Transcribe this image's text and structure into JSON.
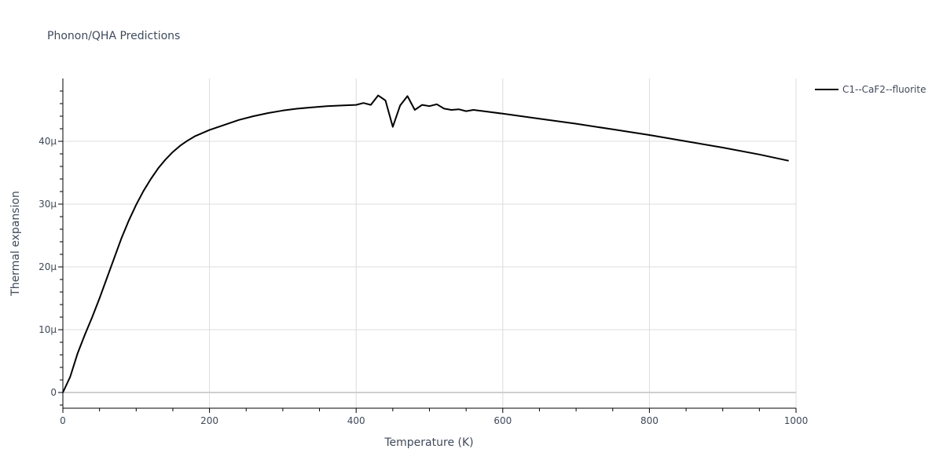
{
  "chart_data": {
    "type": "line",
    "title": "Phonon/QHA Predictions",
    "xlabel": "Temperature (K)",
    "ylabel": "Thermal expansion",
    "xlim": [
      0,
      1000
    ],
    "ylim": [
      -2.5e-06,
      5e-05
    ],
    "x_ticks": [
      {
        "value": 0,
        "label": "0"
      },
      {
        "value": 200,
        "label": "200"
      },
      {
        "value": 400,
        "label": "400"
      },
      {
        "value": 600,
        "label": "600"
      },
      {
        "value": 800,
        "label": "800"
      },
      {
        "value": 1000,
        "label": "1000"
      }
    ],
    "y_ticks": [
      {
        "value": 0,
        "label": "0"
      },
      {
        "value": 1e-05,
        "label": "10µ"
      },
      {
        "value": 2e-05,
        "label": "20µ"
      },
      {
        "value": 3e-05,
        "label": "30µ"
      },
      {
        "value": 4e-05,
        "label": "40µ"
      }
    ],
    "grid": true,
    "legend_position": "top-right",
    "series": [
      {
        "name": "C1--CaF2--fluorite",
        "color": "#000000",
        "x": [
          0,
          10,
          20,
          30,
          40,
          50,
          60,
          70,
          80,
          90,
          100,
          110,
          120,
          130,
          140,
          150,
          160,
          170,
          180,
          190,
          200,
          220,
          240,
          260,
          280,
          300,
          320,
          340,
          360,
          380,
          400,
          410,
          420,
          430,
          440,
          450,
          460,
          470,
          480,
          490,
          500,
          510,
          520,
          530,
          540,
          550,
          560,
          580,
          600,
          650,
          700,
          750,
          800,
          850,
          900,
          950,
          990
        ],
        "y": [
          0,
          2.5e-06,
          6.2e-06,
          9.2e-06,
          1.2e-05,
          1.5e-05,
          1.82e-05,
          2.14e-05,
          2.46e-05,
          2.74e-05,
          2.99e-05,
          3.21e-05,
          3.4e-05,
          3.57e-05,
          3.71e-05,
          3.83e-05,
          3.93e-05,
          4.01e-05,
          4.08e-05,
          4.13e-05,
          4.18e-05,
          4.26e-05,
          4.34e-05,
          4.4e-05,
          4.45e-05,
          4.49e-05,
          4.52e-05,
          4.54e-05,
          4.56e-05,
          4.57e-05,
          4.58e-05,
          4.61e-05,
          4.58e-05,
          4.73e-05,
          4.65e-05,
          4.23e-05,
          4.57e-05,
          4.72e-05,
          4.5e-05,
          4.58e-05,
          4.56e-05,
          4.59e-05,
          4.52e-05,
          4.5e-05,
          4.51e-05,
          4.48e-05,
          4.5e-05,
          4.47e-05,
          4.44e-05,
          4.36e-05,
          4.28e-05,
          4.19e-05,
          4.1e-05,
          4e-05,
          3.9e-05,
          3.79e-05,
          3.69e-05
        ]
      }
    ]
  }
}
